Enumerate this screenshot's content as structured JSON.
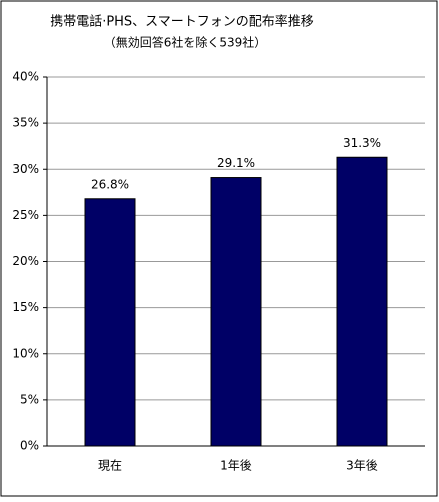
{
  "chart_data": {
    "type": "bar",
    "title": "携帯電話·PHS、スマートフォンの配布率推移",
    "subtitle": "（無効回答6社を除く539社）",
    "categories": [
      "現在",
      "1年後",
      "3年後"
    ],
    "values": [
      26.8,
      29.1,
      31.3
    ],
    "value_labels": [
      "26.8%",
      "29.1%",
      "31.3%"
    ],
    "color": "#000066",
    "ylim": [
      0,
      40
    ],
    "yticks": [
      {
        "value": 0,
        "label": "0%"
      },
      {
        "value": 5,
        "label": "5%"
      },
      {
        "value": 10,
        "label": "10%"
      },
      {
        "value": 15,
        "label": "15%"
      },
      {
        "value": 20,
        "label": "20%"
      },
      {
        "value": 25,
        "label": "25%"
      },
      {
        "value": 30,
        "label": "30%"
      },
      {
        "value": 35,
        "label": "35%"
      },
      {
        "value": 40,
        "label": "40%"
      }
    ],
    "grid": true
  }
}
